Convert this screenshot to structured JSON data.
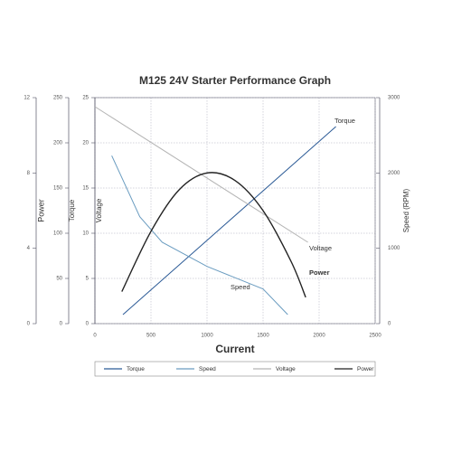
{
  "chart_data": {
    "type": "line",
    "title": "M125 24V Starter Performance Graph",
    "xlabel": "Current",
    "xlim": [
      0,
      2500
    ],
    "xticks": [
      0,
      500,
      1000,
      1500,
      2000,
      2500
    ],
    "grid": true,
    "y_axes": [
      {
        "label": "Power",
        "lim": [
          0,
          12
        ],
        "ticks": [
          0,
          4,
          8,
          12
        ]
      },
      {
        "label": "Torque",
        "lim": [
          0,
          250
        ],
        "ticks": [
          0,
          50,
          100,
          150,
          200,
          250
        ]
      },
      {
        "label": "Voltage",
        "lim": [
          0,
          25
        ],
        "ticks": [
          0,
          5,
          10,
          15,
          20,
          25
        ]
      },
      {
        "label": "Speed (RPM)",
        "lim": [
          0,
          3000
        ],
        "ticks": [
          0,
          1000,
          2000,
          3000
        ]
      }
    ],
    "series": [
      {
        "name": "Torque",
        "color": "#2b5a96",
        "axis": 1,
        "x": [
          250,
          2150
        ],
        "values": [
          10,
          218
        ]
      },
      {
        "name": "Speed",
        "color": "#6a9cc0",
        "axis": 3,
        "x": [
          150,
          400,
          600,
          1000,
          1500,
          1720
        ],
        "values": [
          2230,
          1420,
          1080,
          760,
          460,
          120
        ]
      },
      {
        "name": "Voltage",
        "color": "#b4b4b4",
        "axis": 2,
        "x": [
          0,
          1900
        ],
        "values": [
          24,
          9
        ]
      },
      {
        "name": "Power",
        "color": "#222222",
        "axis": 0,
        "x": [
          240,
          500,
          750,
          1000,
          1250,
          1500,
          1750,
          1880
        ],
        "values": [
          1.7,
          4.9,
          7.1,
          8.0,
          7.6,
          6.0,
          3.3,
          1.4
        ]
      }
    ]
  }
}
